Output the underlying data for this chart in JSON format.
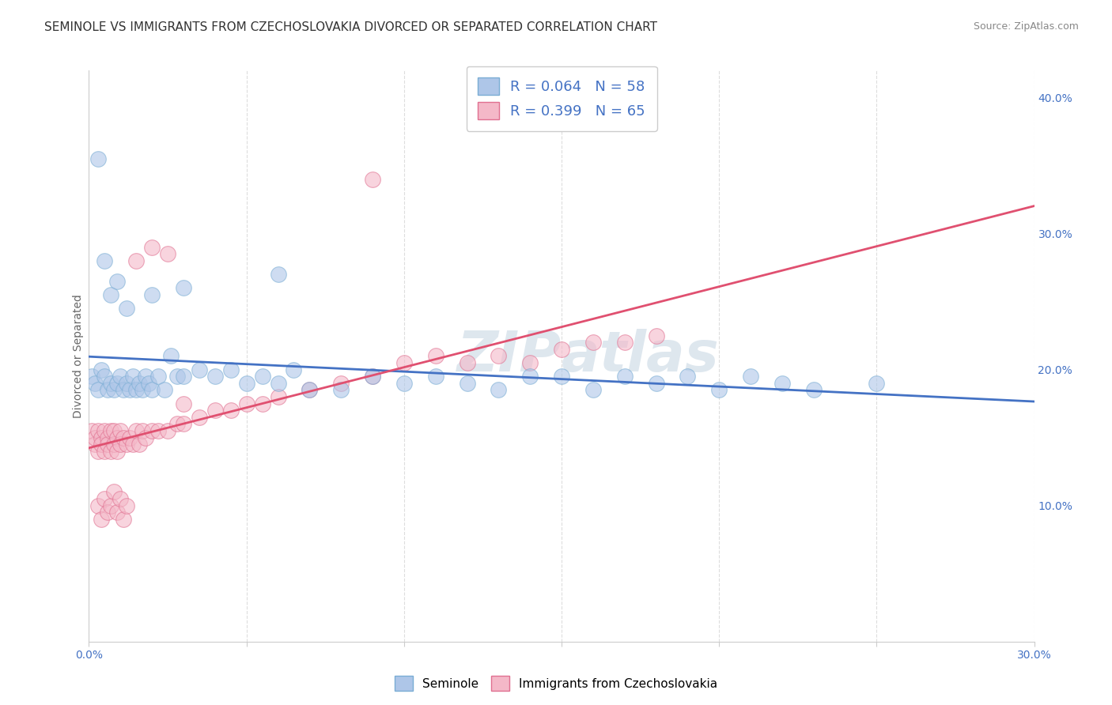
{
  "title": "SEMINOLE VS IMMIGRANTS FROM CZECHOSLOVAKIA DIVORCED OR SEPARATED CORRELATION CHART",
  "source": "Source: ZipAtlas.com",
  "ylabel": "Divorced or Separated",
  "xlim": [
    0.0,
    0.3
  ],
  "ylim": [
    0.0,
    0.42
  ],
  "x_ticks": [
    0.0,
    0.05,
    0.1,
    0.15,
    0.2,
    0.25,
    0.3
  ],
  "x_tick_labels": [
    "0.0%",
    "",
    "",
    "",
    "",
    "",
    "30.0%"
  ],
  "y_ticks_right": [
    0.1,
    0.2,
    0.3,
    0.4
  ],
  "y_tick_labels_right": [
    "10.0%",
    "20.0%",
    "30.0%",
    "40.0%"
  ],
  "watermark_zip": "ZIP",
  "watermark_atlas": "atlas",
  "series": [
    {
      "name": "Seminole",
      "R": 0.064,
      "N": 58,
      "marker_color": "#aec6e8",
      "edge_color": "#7aadd4",
      "trend_color": "#4472c4",
      "trend_style": "-"
    },
    {
      "name": "Immigrants from Czechoslovakia",
      "R": 0.399,
      "N": 65,
      "marker_color": "#f4b8c8",
      "edge_color": "#e07090",
      "trend_color": "#e05070",
      "trend_style": "-"
    }
  ],
  "seminole_x": [
    0.001,
    0.002,
    0.003,
    0.004,
    0.005,
    0.006,
    0.007,
    0.008,
    0.009,
    0.01,
    0.011,
    0.012,
    0.013,
    0.014,
    0.015,
    0.016,
    0.017,
    0.018,
    0.019,
    0.02,
    0.022,
    0.024,
    0.026,
    0.028,
    0.03,
    0.035,
    0.04,
    0.045,
    0.05,
    0.055,
    0.06,
    0.065,
    0.07,
    0.08,
    0.09,
    0.1,
    0.11,
    0.12,
    0.13,
    0.14,
    0.15,
    0.16,
    0.17,
    0.18,
    0.19,
    0.2,
    0.21,
    0.22,
    0.23,
    0.25,
    0.003,
    0.005,
    0.007,
    0.009,
    0.012,
    0.02,
    0.03,
    0.06
  ],
  "seminole_y": [
    0.195,
    0.19,
    0.185,
    0.2,
    0.195,
    0.185,
    0.19,
    0.185,
    0.19,
    0.195,
    0.185,
    0.19,
    0.185,
    0.195,
    0.185,
    0.19,
    0.185,
    0.195,
    0.19,
    0.185,
    0.195,
    0.185,
    0.21,
    0.195,
    0.195,
    0.2,
    0.195,
    0.2,
    0.19,
    0.195,
    0.19,
    0.2,
    0.185,
    0.185,
    0.195,
    0.19,
    0.195,
    0.19,
    0.185,
    0.195,
    0.195,
    0.185,
    0.195,
    0.19,
    0.195,
    0.185,
    0.195,
    0.19,
    0.185,
    0.19,
    0.355,
    0.28,
    0.255,
    0.265,
    0.245,
    0.255,
    0.26,
    0.27
  ],
  "czech_x": [
    0.001,
    0.002,
    0.002,
    0.003,
    0.003,
    0.004,
    0.004,
    0.005,
    0.005,
    0.006,
    0.006,
    0.007,
    0.007,
    0.008,
    0.008,
    0.009,
    0.009,
    0.01,
    0.01,
    0.011,
    0.012,
    0.013,
    0.014,
    0.015,
    0.016,
    0.017,
    0.018,
    0.02,
    0.022,
    0.025,
    0.028,
    0.03,
    0.035,
    0.04,
    0.045,
    0.05,
    0.055,
    0.06,
    0.07,
    0.08,
    0.09,
    0.1,
    0.11,
    0.12,
    0.13,
    0.14,
    0.15,
    0.16,
    0.17,
    0.18,
    0.003,
    0.004,
    0.005,
    0.006,
    0.007,
    0.008,
    0.009,
    0.01,
    0.011,
    0.012,
    0.015,
    0.02,
    0.025,
    0.03,
    0.09
  ],
  "czech_y": [
    0.155,
    0.145,
    0.15,
    0.14,
    0.155,
    0.15,
    0.145,
    0.155,
    0.14,
    0.15,
    0.145,
    0.155,
    0.14,
    0.155,
    0.145,
    0.15,
    0.14,
    0.155,
    0.145,
    0.15,
    0.145,
    0.15,
    0.145,
    0.155,
    0.145,
    0.155,
    0.15,
    0.155,
    0.155,
    0.155,
    0.16,
    0.16,
    0.165,
    0.17,
    0.17,
    0.175,
    0.175,
    0.18,
    0.185,
    0.19,
    0.195,
    0.205,
    0.21,
    0.205,
    0.21,
    0.205,
    0.215,
    0.22,
    0.22,
    0.225,
    0.1,
    0.09,
    0.105,
    0.095,
    0.1,
    0.11,
    0.095,
    0.105,
    0.09,
    0.1,
    0.28,
    0.29,
    0.285,
    0.175,
    0.34
  ],
  "background_color": "#ffffff",
  "grid_color": "#dddddd",
  "title_fontsize": 11,
  "axis_fontsize": 10,
  "tick_fontsize": 10,
  "legend_fontsize": 13
}
